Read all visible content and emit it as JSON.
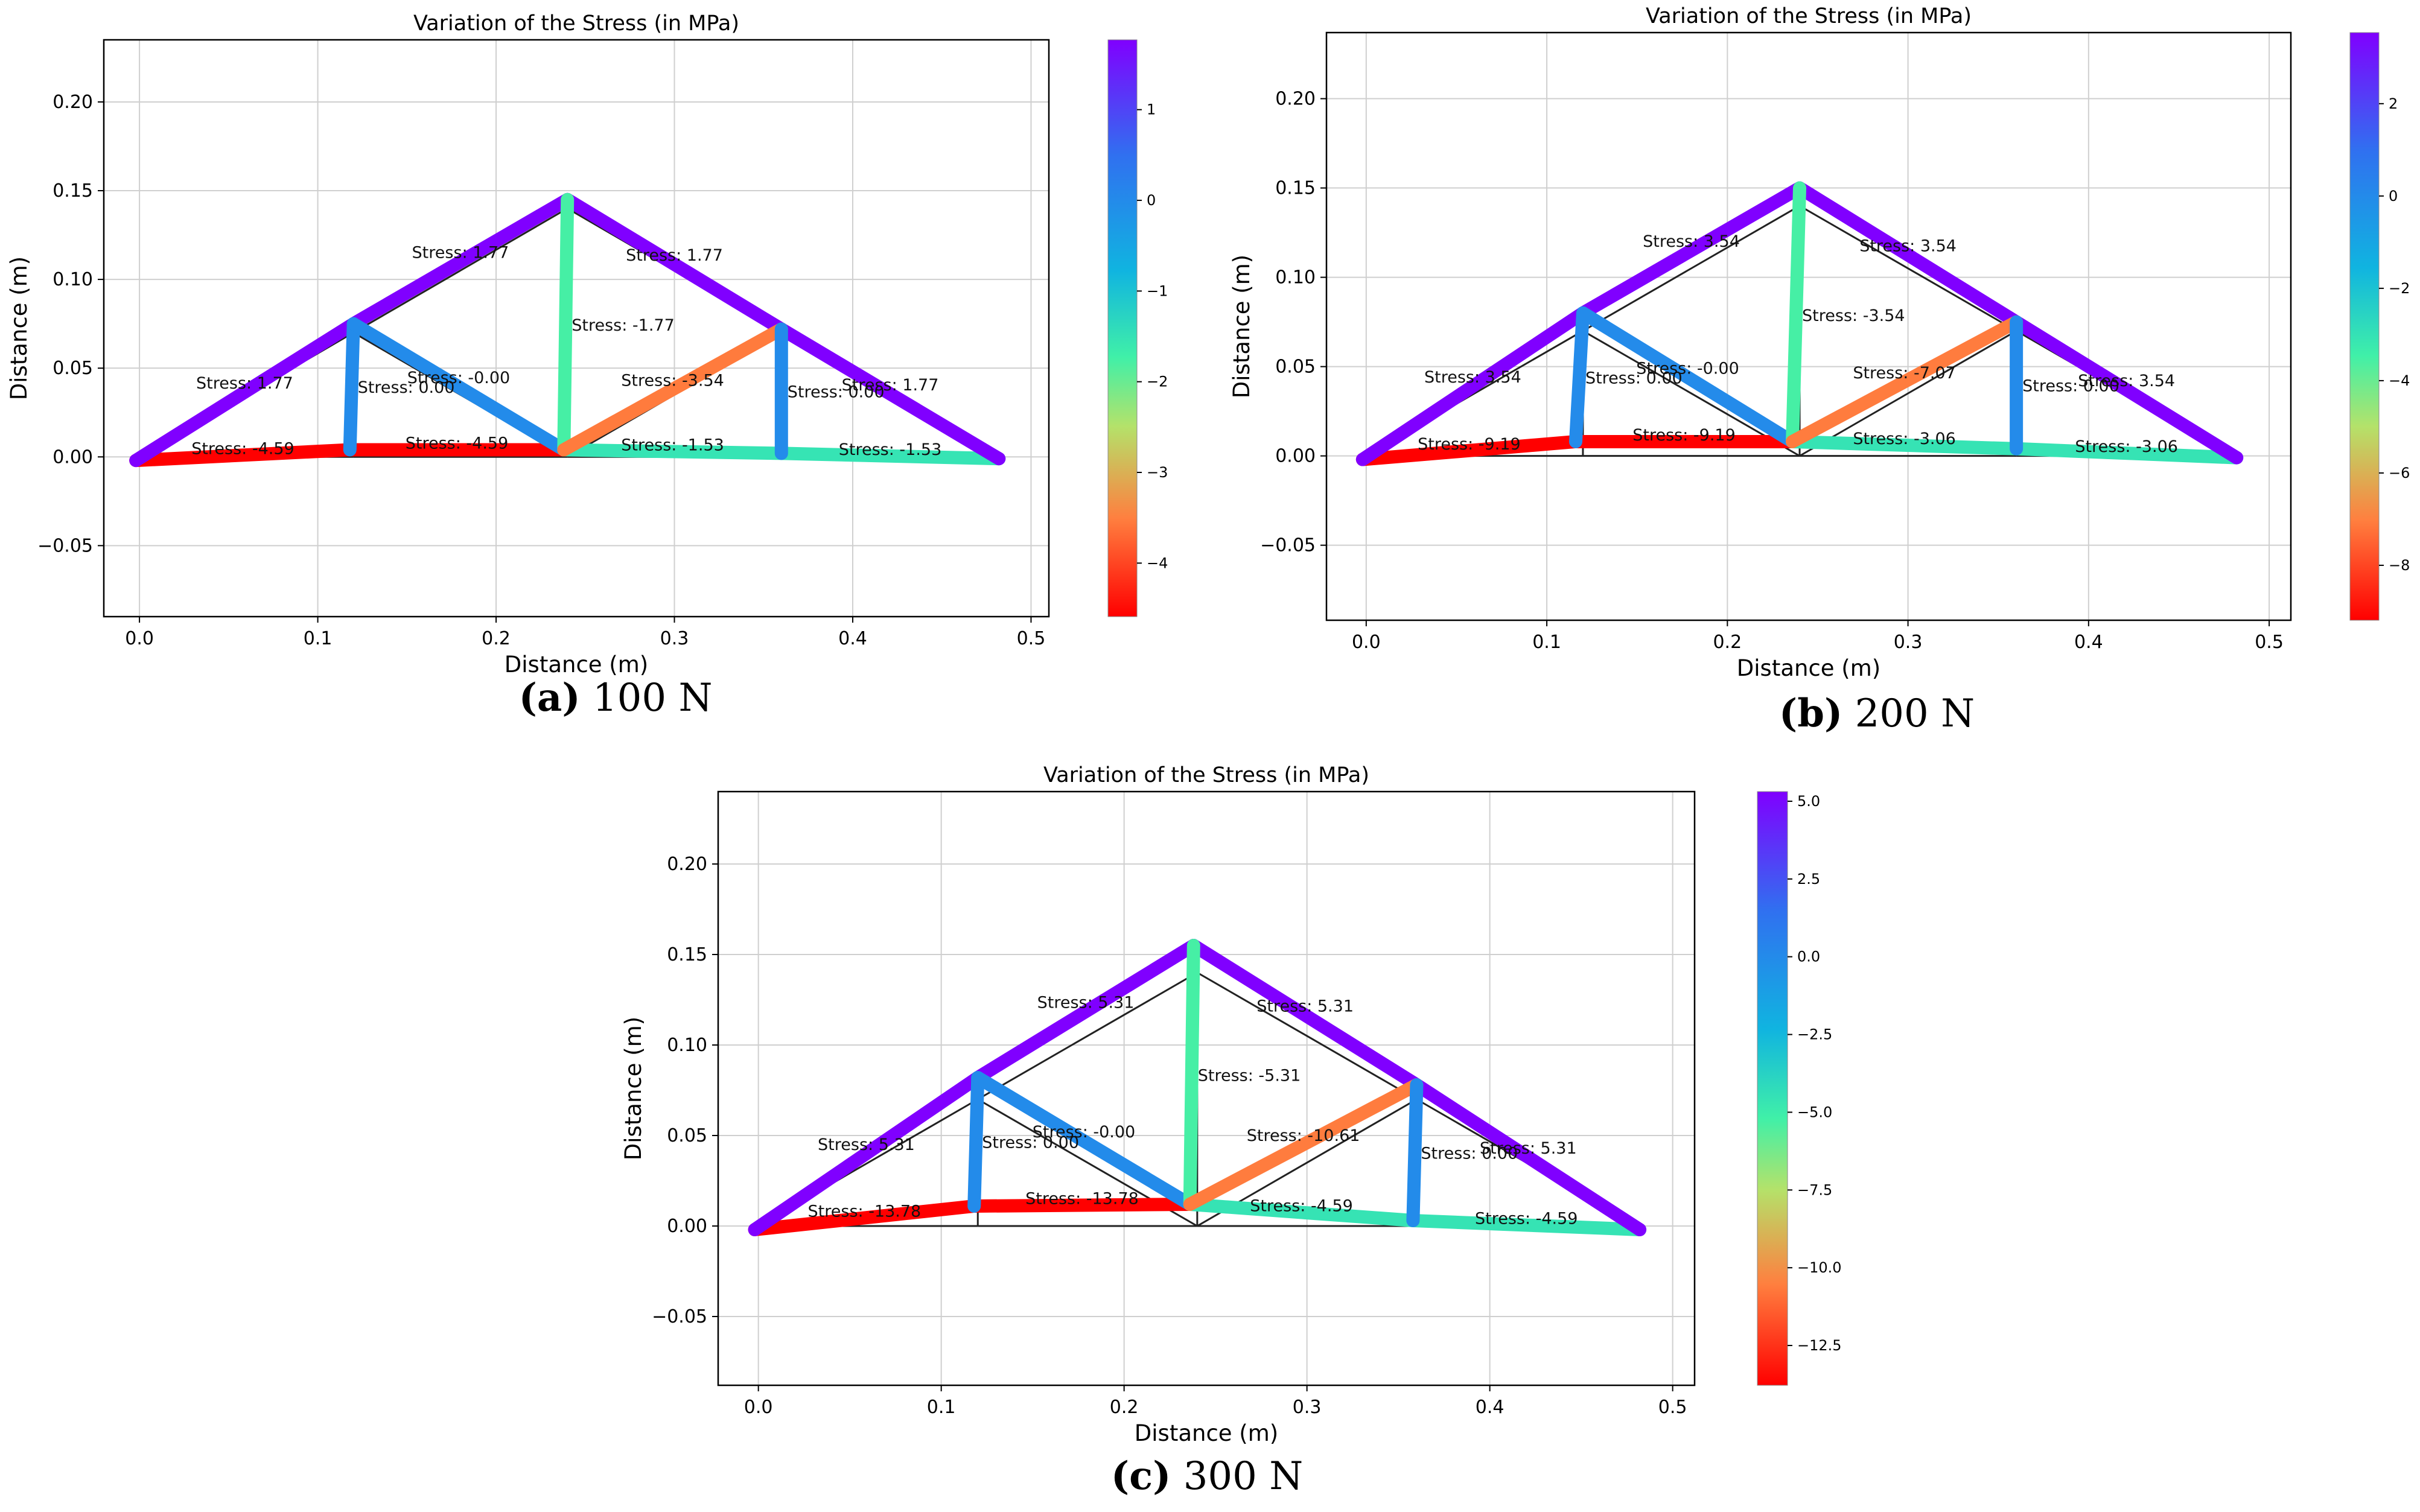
{
  "chart_data": [
    {
      "type": "truss",
      "title": "Variation of the Stress (in MPa)",
      "xlabel": "Distance (m)",
      "ylabel": "Distance (m)",
      "xlim": [
        -0.02,
        0.51
      ],
      "ylim": [
        -0.09,
        0.235
      ],
      "xticks": [
        0.0,
        0.1,
        0.2,
        0.3,
        0.4,
        0.5
      ],
      "xtick_labels": [
        "0.0",
        "0.1",
        "0.2",
        "0.3",
        "0.4",
        "0.5"
      ],
      "yticks": [
        -0.05,
        0.0,
        0.05,
        0.1,
        0.15,
        0.2
      ],
      "ytick_labels": [
        "−0.05",
        "0.00",
        "0.05",
        "0.10",
        "0.15",
        "0.20"
      ],
      "grid": true,
      "colorbar": {
        "range": [
          -4.59,
          1.77
        ],
        "ticks": [
          1,
          0,
          -1,
          -2,
          -3,
          -4
        ],
        "tick_labels": [
          "1",
          "0",
          "−1",
          "−2",
          "−3",
          "−4"
        ]
      },
      "caption": {
        "letter": "(a)",
        "text": "100 N"
      },
      "nodes_original": [
        [
          0,
          0
        ],
        [
          0.12,
          0
        ],
        [
          0.24,
          0
        ],
        [
          0.36,
          0
        ],
        [
          0.48,
          0
        ],
        [
          0.12,
          0.07
        ],
        [
          0.24,
          0.14
        ],
        [
          0.36,
          0.07
        ]
      ],
      "nodes_deformed": [
        [
          -0.002,
          -0.002
        ],
        [
          0.118,
          0.004
        ],
        [
          0.238,
          0.004
        ],
        [
          0.36,
          0.002
        ],
        [
          0.482,
          -0.001
        ],
        [
          0.12,
          0.075
        ],
        [
          0.24,
          0.145
        ],
        [
          0.36,
          0.072
        ]
      ],
      "members": [
        {
          "from": 0,
          "to": 1,
          "stress": -4.59,
          "label": "Stress: -4.59"
        },
        {
          "from": 1,
          "to": 2,
          "stress": -4.59,
          "label": "Stress: -4.59"
        },
        {
          "from": 2,
          "to": 3,
          "stress": -1.53,
          "label": "Stress: -1.53"
        },
        {
          "from": 3,
          "to": 4,
          "stress": -1.53,
          "label": "Stress: -1.53"
        },
        {
          "from": 0,
          "to": 5,
          "stress": 1.77,
          "label": "Stress: 1.77"
        },
        {
          "from": 5,
          "to": 6,
          "stress": 1.77,
          "label": "Stress: 1.77"
        },
        {
          "from": 6,
          "to": 7,
          "stress": 1.77,
          "label": "Stress: 1.77"
        },
        {
          "from": 7,
          "to": 4,
          "stress": 1.77,
          "label": "Stress: 1.77"
        },
        {
          "from": 1,
          "to": 5,
          "stress": 0.0,
          "label": "Stress: 0.00"
        },
        {
          "from": 5,
          "to": 2,
          "stress": 0.0,
          "label": "Stress: -0.00"
        },
        {
          "from": 2,
          "to": 6,
          "stress": -1.77,
          "label": "Stress: -1.77"
        },
        {
          "from": 2,
          "to": 7,
          "stress": -3.54,
          "label": "Stress: -3.54"
        },
        {
          "from": 3,
          "to": 7,
          "stress": 0.0,
          "label": "Stress: 0.00"
        }
      ]
    },
    {
      "type": "truss",
      "title": "Variation of the Stress (in MPa)",
      "xlabel": "Distance (m)",
      "ylabel": "Distance (m)",
      "xlim": [
        -0.022,
        0.512
      ],
      "ylim": [
        -0.092,
        0.237
      ],
      "xticks": [
        0.0,
        0.1,
        0.2,
        0.3,
        0.4,
        0.5
      ],
      "xtick_labels": [
        "0.0",
        "0.1",
        "0.2",
        "0.3",
        "0.4",
        "0.5"
      ],
      "yticks": [
        -0.05,
        0.0,
        0.05,
        0.1,
        0.15,
        0.2
      ],
      "ytick_labels": [
        "−0.05",
        "0.00",
        "0.05",
        "0.10",
        "0.15",
        "0.20"
      ],
      "grid": true,
      "colorbar": {
        "range": [
          -9.19,
          3.54
        ],
        "ticks": [
          2,
          0,
          -2,
          -4,
          -6,
          -8
        ],
        "tick_labels": [
          "2",
          "0",
          "−2",
          "−4",
          "−6",
          "−8"
        ]
      },
      "caption": {
        "letter": "(b)",
        "text": "200 N"
      },
      "nodes_original": [
        [
          0,
          0
        ],
        [
          0.12,
          0
        ],
        [
          0.24,
          0
        ],
        [
          0.36,
          0
        ],
        [
          0.48,
          0
        ],
        [
          0.12,
          0.07
        ],
        [
          0.24,
          0.14
        ],
        [
          0.36,
          0.07
        ]
      ],
      "nodes_deformed": [
        [
          -0.002,
          -0.002
        ],
        [
          0.116,
          0.008
        ],
        [
          0.236,
          0.008
        ],
        [
          0.36,
          0.004
        ],
        [
          0.482,
          -0.001
        ],
        [
          0.12,
          0.08
        ],
        [
          0.24,
          0.15
        ],
        [
          0.36,
          0.075
        ]
      ],
      "members": [
        {
          "from": 0,
          "to": 1,
          "stress": -9.19,
          "label": "Stress: -9.19"
        },
        {
          "from": 1,
          "to": 2,
          "stress": -9.19,
          "label": "Stress: -9.19"
        },
        {
          "from": 2,
          "to": 3,
          "stress": -3.06,
          "label": "Stress: -3.06"
        },
        {
          "from": 3,
          "to": 4,
          "stress": -3.06,
          "label": "Stress: -3.06"
        },
        {
          "from": 0,
          "to": 5,
          "stress": 3.54,
          "label": "Stress: 3.54"
        },
        {
          "from": 5,
          "to": 6,
          "stress": 3.54,
          "label": "Stress: 3.54"
        },
        {
          "from": 6,
          "to": 7,
          "stress": 3.54,
          "label": "Stress: 3.54"
        },
        {
          "from": 7,
          "to": 4,
          "stress": 3.54,
          "label": "Stress: 3.54"
        },
        {
          "from": 1,
          "to": 5,
          "stress": 0.0,
          "label": "Stress: 0.00"
        },
        {
          "from": 5,
          "to": 2,
          "stress": 0.0,
          "label": "Stress: -0.00"
        },
        {
          "from": 2,
          "to": 6,
          "stress": -3.54,
          "label": "Stress: -3.54"
        },
        {
          "from": 2,
          "to": 7,
          "stress": -7.07,
          "label": "Stress: -7.07"
        },
        {
          "from": 3,
          "to": 7,
          "stress": 0.0,
          "label": "Stress: 0.00"
        }
      ]
    },
    {
      "type": "truss",
      "title": "Variation of the Stress (in MPa)",
      "xlabel": "Distance (m)",
      "ylabel": "Distance (m)",
      "xlim": [
        -0.022,
        0.512
      ],
      "ylim": [
        -0.088,
        0.24
      ],
      "xticks": [
        0.0,
        0.1,
        0.2,
        0.3,
        0.4,
        0.5
      ],
      "xtick_labels": [
        "0.0",
        "0.1",
        "0.2",
        "0.3",
        "0.4",
        "0.5"
      ],
      "yticks": [
        -0.05,
        0.0,
        0.05,
        0.1,
        0.15,
        0.2
      ],
      "ytick_labels": [
        "−0.05",
        "0.00",
        "0.05",
        "0.10",
        "0.15",
        "0.20"
      ],
      "grid": true,
      "colorbar": {
        "range": [
          -13.78,
          5.31
        ],
        "ticks": [
          5.0,
          2.5,
          0.0,
          -2.5,
          -5.0,
          -7.5,
          -10.0,
          -12.5
        ],
        "tick_labels": [
          "5.0",
          "2.5",
          "0.0",
          "−2.5",
          "−5.0",
          "−7.5",
          "−10.0",
          "−12.5"
        ]
      },
      "caption": {
        "letter": "(c)",
        "text": "300 N"
      },
      "nodes_original": [
        [
          0,
          0
        ],
        [
          0.12,
          0
        ],
        [
          0.24,
          0
        ],
        [
          0.36,
          0
        ],
        [
          0.48,
          0
        ],
        [
          0.12,
          0.07
        ],
        [
          0.24,
          0.14
        ],
        [
          0.36,
          0.07
        ]
      ],
      "nodes_deformed": [
        [
          -0.002,
          -0.002
        ],
        [
          0.118,
          0.011
        ],
        [
          0.236,
          0.012
        ],
        [
          0.358,
          0.003
        ],
        [
          0.482,
          -0.002
        ],
        [
          0.12,
          0.082
        ],
        [
          0.238,
          0.155
        ],
        [
          0.36,
          0.078
        ]
      ],
      "members": [
        {
          "from": 0,
          "to": 1,
          "stress": -13.78,
          "label": "Stress: -13.78"
        },
        {
          "from": 1,
          "to": 2,
          "stress": -13.78,
          "label": "Stress: -13.78"
        },
        {
          "from": 2,
          "to": 3,
          "stress": -4.59,
          "label": "Stress: -4.59"
        },
        {
          "from": 3,
          "to": 4,
          "stress": -4.59,
          "label": "Stress: -4.59"
        },
        {
          "from": 0,
          "to": 5,
          "stress": 5.31,
          "label": "Stress: 5.31"
        },
        {
          "from": 5,
          "to": 6,
          "stress": 5.31,
          "label": "Stress: 5.31"
        },
        {
          "from": 6,
          "to": 7,
          "stress": 5.31,
          "label": "Stress: 5.31"
        },
        {
          "from": 7,
          "to": 4,
          "stress": 5.31,
          "label": "Stress: 5.31"
        },
        {
          "from": 1,
          "to": 5,
          "stress": 0.0,
          "label": "Stress: 0.00"
        },
        {
          "from": 5,
          "to": 2,
          "stress": 0.0,
          "label": "Stress: -0.00"
        },
        {
          "from": 2,
          "to": 6,
          "stress": -5.31,
          "label": "Stress: -5.31"
        },
        {
          "from": 2,
          "to": 7,
          "stress": -10.61,
          "label": "Stress: -10.61"
        },
        {
          "from": 3,
          "to": 7,
          "stress": 0.0,
          "label": "Stress: 0.00"
        }
      ]
    }
  ]
}
